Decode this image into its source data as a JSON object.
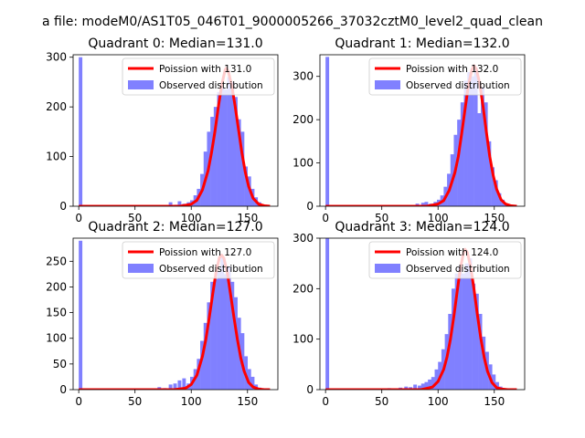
{
  "figure": {
    "suptitle": "a file: modeM0/AS1T05_046T01_9000005266_37032cztM0_level2_quad_clean"
  },
  "colors": {
    "model_line": "#ff0000",
    "histogram_fill": "#8080ff",
    "axis": "#000000",
    "background": "#ffffff"
  },
  "chart_data": [
    {
      "type": "bar",
      "title": "Quadrant 0: Median=131.0",
      "xlabel": "",
      "ylabel": "",
      "xlim": [
        -5,
        177
      ],
      "ylim": [
        0,
        305
      ],
      "xticks": [
        0,
        50,
        100,
        150
      ],
      "yticks": [
        0,
        100,
        200,
        300
      ],
      "grid": false,
      "legend_position": "top-right",
      "bin_width": 3.2,
      "series": [
        {
          "name": "Poission with 131.0",
          "kind": "line",
          "mean": 131.0,
          "x": [
            0,
            90,
            100,
            105,
            110,
            115,
            118,
            121,
            124,
            127,
            130,
            131,
            133,
            136,
            139,
            142,
            145,
            148,
            151,
            155,
            160,
            165,
            170
          ],
          "y": [
            0,
            0,
            4,
            12,
            33,
            72,
            108,
            150,
            199,
            243,
            274,
            278,
            271,
            243,
            202,
            155,
            108,
            69,
            40,
            16,
            4,
            1,
            0
          ]
        },
        {
          "name": "Observed distribution",
          "kind": "histogram",
          "x": [
            0,
            57,
            60,
            70,
            80,
            85,
            88,
            92,
            96,
            99,
            102,
            105,
            108,
            111,
            114,
            117,
            120,
            123,
            126,
            129,
            132,
            135,
            138,
            141,
            144,
            147,
            150,
            153,
            156,
            159,
            162,
            165
          ],
          "y": [
            300,
            1,
            1,
            2,
            8,
            3,
            10,
            5,
            8,
            12,
            22,
            35,
            65,
            110,
            150,
            180,
            200,
            230,
            240,
            235,
            260,
            250,
            220,
            175,
            150,
            80,
            60,
            35,
            18,
            8,
            3,
            1
          ]
        }
      ]
    },
    {
      "type": "bar",
      "title": "Quadrant 1: Median=132.0",
      "xlabel": "",
      "ylabel": "",
      "xlim": [
        -5,
        177
      ],
      "ylim": [
        0,
        350
      ],
      "xticks": [
        0,
        50,
        100,
        150
      ],
      "yticks": [
        0,
        100,
        200,
        300
      ],
      "grid": false,
      "legend_position": "top-right",
      "bin_width": 3.2,
      "series": [
        {
          "name": "Poission with 132.0",
          "kind": "line",
          "mean": 132.0,
          "x": [
            0,
            90,
            100,
            105,
            110,
            115,
            118,
            121,
            124,
            127,
            130,
            132,
            134,
            137,
            140,
            143,
            146,
            149,
            152,
            156,
            160,
            165,
            170
          ],
          "y": [
            0,
            0,
            5,
            13,
            37,
            78,
            115,
            168,
            225,
            280,
            315,
            325,
            317,
            284,
            230,
            170,
            115,
            72,
            40,
            15,
            5,
            1,
            0
          ]
        },
        {
          "name": "Observed distribution",
          "kind": "histogram",
          "x": [
            0,
            60,
            70,
            80,
            85,
            88,
            92,
            96,
            99,
            102,
            105,
            108,
            111,
            114,
            117,
            120,
            123,
            126,
            129,
            132,
            135,
            138,
            141,
            144,
            147,
            150,
            153,
            156,
            159,
            162,
            165
          ],
          "y": [
            345,
            1,
            2,
            6,
            8,
            10,
            6,
            10,
            15,
            25,
            45,
            75,
            120,
            165,
            200,
            240,
            290,
            310,
            300,
            320,
            215,
            275,
            240,
            150,
            90,
            60,
            30,
            15,
            6,
            2,
            1
          ]
        }
      ]
    },
    {
      "type": "bar",
      "title": "Quadrant 2: Median=127.0",
      "xlabel": "",
      "ylabel": "",
      "xlim": [
        -5,
        177
      ],
      "ylim": [
        0,
        295
      ],
      "xticks": [
        0,
        50,
        100,
        150
      ],
      "yticks": [
        0,
        50,
        100,
        150,
        200,
        250
      ],
      "grid": false,
      "legend_position": "top-right",
      "bin_width": 3.2,
      "series": [
        {
          "name": "Poission with 127.0",
          "kind": "line",
          "mean": 127.0,
          "x": [
            0,
            85,
            95,
            100,
            105,
            110,
            113,
            116,
            119,
            122,
            125,
            127,
            129,
            132,
            135,
            138,
            141,
            144,
            147,
            151,
            155,
            160,
            165,
            170
          ],
          "y": [
            0,
            0,
            3,
            10,
            28,
            65,
            98,
            140,
            185,
            228,
            257,
            262,
            256,
            228,
            185,
            140,
            98,
            62,
            36,
            14,
            5,
            1,
            0,
            0
          ]
        },
        {
          "name": "Observed distribution",
          "kind": "histogram",
          "x": [
            0,
            50,
            60,
            70,
            75,
            80,
            84,
            88,
            92,
            96,
            99,
            102,
            105,
            108,
            111,
            114,
            117,
            120,
            123,
            126,
            129,
            132,
            135,
            138,
            141,
            144,
            147,
            150,
            153,
            156,
            159,
            162
          ],
          "y": [
            290,
            1,
            2,
            5,
            3,
            10,
            12,
            18,
            22,
            12,
            25,
            40,
            60,
            95,
            130,
            170,
            210,
            215,
            230,
            260,
            225,
            240,
            210,
            180,
            140,
            110,
            65,
            40,
            25,
            10,
            4,
            1
          ]
        }
      ]
    },
    {
      "type": "bar",
      "title": "Quadrant 3: Median=124.0",
      "xlabel": "",
      "ylabel": "",
      "xlim": [
        -5,
        177
      ],
      "ylim": [
        0,
        300
      ],
      "xticks": [
        0,
        50,
        100,
        150
      ],
      "yticks": [
        0,
        100,
        200,
        300
      ],
      "grid": false,
      "legend_position": "top-right",
      "bin_width": 3.2,
      "series": [
        {
          "name": "Poission with 124.0",
          "kind": "line",
          "mean": 124.0,
          "x": [
            0,
            85,
            95,
            100,
            105,
            108,
            111,
            114,
            117,
            120,
            123,
            124,
            126,
            129,
            132,
            135,
            138,
            141,
            144,
            148,
            152,
            157,
            162,
            170
          ],
          "y": [
            0,
            0,
            5,
            16,
            40,
            65,
            100,
            145,
            195,
            242,
            274,
            278,
            272,
            244,
            198,
            148,
            102,
            64,
            36,
            14,
            4,
            1,
            0,
            0
          ]
        },
        {
          "name": "Observed distribution",
          "kind": "histogram",
          "x": [
            0,
            50,
            55,
            60,
            65,
            70,
            74,
            78,
            82,
            85,
            88,
            91,
            94,
            97,
            100,
            103,
            106,
            109,
            112,
            115,
            118,
            121,
            124,
            127,
            130,
            133,
            136,
            139,
            142,
            145,
            148,
            151,
            154,
            157
          ],
          "y": [
            300,
            1,
            3,
            2,
            4,
            6,
            5,
            10,
            8,
            12,
            15,
            20,
            25,
            40,
            55,
            80,
            110,
            150,
            200,
            230,
            245,
            230,
            250,
            260,
            210,
            190,
            150,
            105,
            75,
            50,
            30,
            15,
            6,
            2
          ]
        }
      ]
    }
  ]
}
